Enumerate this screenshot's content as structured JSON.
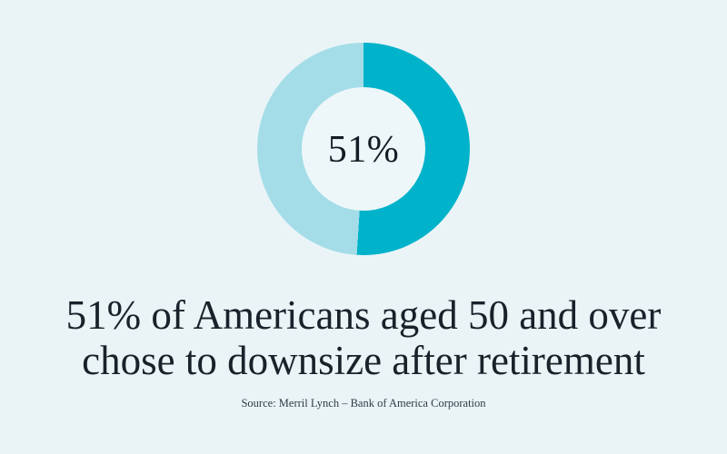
{
  "page": {
    "background": "#eaf4f7"
  },
  "chart_data": {
    "type": "pie",
    "subtype": "donut",
    "values": [
      51,
      49
    ],
    "colors": [
      "#00b2ca",
      "#a4dde8"
    ],
    "center_label": "51%",
    "hole_color": "#edf7f9",
    "start_angle_deg": 0,
    "direction": "clockwise",
    "legend": "none",
    "title": "51% of Americans aged 50 and over chose to downsize after retirement"
  },
  "headline": {
    "lines": [
      "51% of Americans aged 50 and over",
      "chose to downsize after retirement"
    ]
  },
  "source": {
    "text": "Source: Merril Lynch – Bank of America Corporation"
  }
}
